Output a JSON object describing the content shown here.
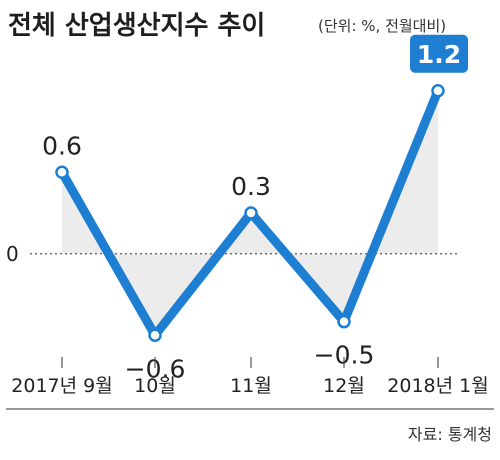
{
  "header": {
    "title": "전체 산업생산지수 추이",
    "unit": "(단위: %, 전월대비)"
  },
  "source": "자료: 통계청",
  "colors": {
    "line": "#1e7fd2",
    "highlight_box": "#1e7fd2",
    "area_fill": "#ececec",
    "axis": "#555555"
  },
  "chart_data": {
    "type": "line",
    "categories": [
      "2017년 9월",
      "10월",
      "11월",
      "12월",
      "2018년 1월"
    ],
    "series": [
      {
        "values": [
          0.6,
          -0.6,
          0.3,
          -0.5,
          1.2
        ]
      }
    ],
    "value_labels": [
      "0.6",
      "−0.6",
      "0.3",
      "−0.5",
      "1.2"
    ],
    "highlight_index": 4,
    "ylim": [
      -0.9,
      1.5
    ],
    "zero_label": "0",
    "grid": false,
    "legend": "none"
  }
}
